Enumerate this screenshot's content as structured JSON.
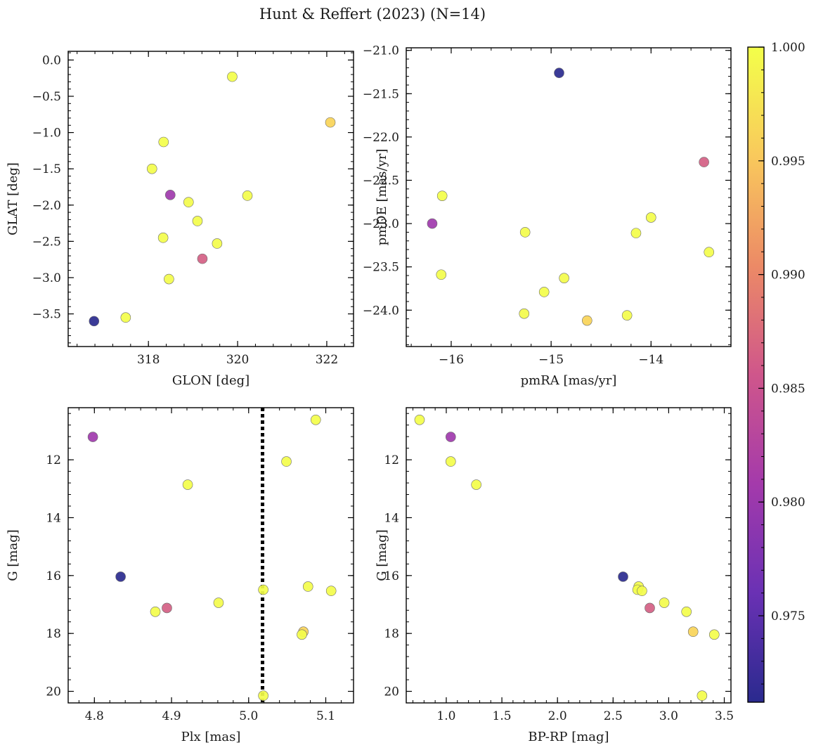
{
  "figure": {
    "title": "Hunt & Reffert (2023) (N=14)"
  },
  "chart_data": [
    {
      "type": "scatter",
      "xlabel": "GLON [deg]",
      "ylabel": "GLAT [deg]",
      "xlim": [
        316.2,
        322.6
      ],
      "ylim": [
        -3.95,
        0.12
      ],
      "invert_y": false,
      "xticks": [
        318,
        320,
        322
      ],
      "xtick_labels": [
        "318",
        "320",
        "322"
      ],
      "yticks": [
        0.0,
        -0.5,
        -1.0,
        -1.5,
        -2.0,
        -2.5,
        -3.0,
        -3.5
      ],
      "ytick_labels": [
        "0.0",
        "−0.5",
        "−1.0",
        "−1.5",
        "−2.0",
        "−2.5",
        "−3.0",
        "−3.5"
      ],
      "x_minor_step": 0.4,
      "y_minor_step": 0.1,
      "points": [
        {
          "x": 316.78,
          "y": -3.6,
          "c": 0.9712
        },
        {
          "x": 317.49,
          "y": -3.55,
          "c": 0.9999
        },
        {
          "x": 318.08,
          "y": -1.5,
          "c": 0.9998
        },
        {
          "x": 318.34,
          "y": -1.13,
          "c": 0.9999
        },
        {
          "x": 318.49,
          "y": -1.86,
          "c": 0.9805
        },
        {
          "x": 318.33,
          "y": -2.45,
          "c": 0.9998
        },
        {
          "x": 318.46,
          "y": -3.02,
          "c": 0.9997
        },
        {
          "x": 318.9,
          "y": -1.96,
          "c": 0.9996
        },
        {
          "x": 319.1,
          "y": -2.22,
          "c": 0.9998
        },
        {
          "x": 319.21,
          "y": -2.74,
          "c": 0.9865
        },
        {
          "x": 319.54,
          "y": -2.53,
          "c": 0.9997
        },
        {
          "x": 319.88,
          "y": -0.23,
          "c": 0.9999
        },
        {
          "x": 320.22,
          "y": -1.87,
          "c": 0.9997
        },
        {
          "x": 322.08,
          "y": -0.86,
          "c": 0.9962
        }
      ]
    },
    {
      "type": "scatter",
      "xlabel": "pmRA [mas/yr]",
      "ylabel": "pmDE [mas/yr]",
      "xlim": [
        -16.45,
        -13.2
      ],
      "ylim": [
        -24.42,
        -20.97
      ],
      "invert_y": false,
      "xticks": [
        -16,
        -15,
        -14
      ],
      "xtick_labels": [
        "−16",
        "−15",
        "−14"
      ],
      "yticks": [
        -21.0,
        -21.5,
        -22.0,
        -22.5,
        -23.0,
        -23.5,
        -24.0
      ],
      "ytick_labels": [
        "−21.0",
        "−21.5",
        "−22.0",
        "−22.5",
        "−23.0",
        "−23.5",
        "−24.0"
      ],
      "x_minor_step": 0.2,
      "y_minor_step": 0.1,
      "points": [
        {
          "x": -14.92,
          "y": -21.26,
          "c": 0.9712
        },
        {
          "x": -13.47,
          "y": -22.29,
          "c": 0.9865
        },
        {
          "x": -16.09,
          "y": -22.68,
          "c": 0.9999
        },
        {
          "x": -16.19,
          "y": -23.0,
          "c": 0.9805
        },
        {
          "x": -14.0,
          "y": -22.93,
          "c": 0.9998
        },
        {
          "x": -15.26,
          "y": -23.1,
          "c": 0.9997
        },
        {
          "x": -14.15,
          "y": -23.11,
          "c": 0.9999
        },
        {
          "x": -13.42,
          "y": -23.33,
          "c": 0.9998
        },
        {
          "x": -16.1,
          "y": -23.59,
          "c": 0.9998
        },
        {
          "x": -14.87,
          "y": -23.63,
          "c": 0.9997
        },
        {
          "x": -15.07,
          "y": -23.79,
          "c": 0.9999
        },
        {
          "x": -15.27,
          "y": -24.04,
          "c": 0.9996
        },
        {
          "x": -14.24,
          "y": -24.06,
          "c": 0.9997
        },
        {
          "x": -14.64,
          "y": -24.12,
          "c": 0.9962
        }
      ]
    },
    {
      "type": "scatter",
      "xlabel": "Plx [mas]",
      "ylabel": "G [mag]",
      "xlim": [
        4.766,
        5.136
      ],
      "ylim": [
        10.2,
        20.4
      ],
      "invert_y": true,
      "xticks": [
        4.8,
        4.9,
        5.0,
        5.1
      ],
      "xtick_labels": [
        "4.8",
        "4.9",
        "5.0",
        "5.1"
      ],
      "yticks": [
        12,
        14,
        16,
        18,
        20
      ],
      "ytick_labels": [
        "12",
        "14",
        "16",
        "18",
        "20"
      ],
      "x_minor_step": 0.02,
      "y_minor_step": 0.4,
      "vline": 5.018,
      "points": [
        {
          "x": 4.798,
          "y": 11.21,
          "c": 0.9805
        },
        {
          "x": 5.087,
          "y": 10.62,
          "c": 0.9999
        },
        {
          "x": 5.049,
          "y": 12.06,
          "c": 0.9998
        },
        {
          "x": 4.921,
          "y": 12.86,
          "c": 0.9999
        },
        {
          "x": 4.834,
          "y": 16.04,
          "c": 0.9712
        },
        {
          "x": 5.077,
          "y": 16.38,
          "c": 0.9997
        },
        {
          "x": 5.019,
          "y": 16.49,
          "c": 0.9999
        },
        {
          "x": 5.107,
          "y": 16.53,
          "c": 0.9997
        },
        {
          "x": 4.961,
          "y": 16.94,
          "c": 0.9996
        },
        {
          "x": 4.894,
          "y": 17.12,
          "c": 0.9865
        },
        {
          "x": 4.879,
          "y": 17.25,
          "c": 0.9998
        },
        {
          "x": 5.071,
          "y": 17.94,
          "c": 0.9962
        },
        {
          "x": 5.069,
          "y": 18.04,
          "c": 0.9998
        },
        {
          "x": 5.019,
          "y": 20.15,
          "c": 0.9997
        }
      ]
    },
    {
      "type": "scatter",
      "xlabel": "BP-RP [mag]",
      "ylabel": "G [mag]",
      "xlim": [
        0.64,
        3.56
      ],
      "ylim": [
        10.2,
        20.4
      ],
      "invert_y": true,
      "xticks": [
        1.0,
        1.5,
        2.0,
        2.5,
        3.0,
        3.5
      ],
      "xtick_labels": [
        "1.0",
        "1.5",
        "2.0",
        "2.5",
        "3.0",
        "3.5"
      ],
      "yticks": [
        12,
        14,
        16,
        18,
        20
      ],
      "ytick_labels": [
        "12",
        "14",
        "16",
        "18",
        "20"
      ],
      "x_minor_step": 0.1,
      "y_minor_step": 0.4,
      "points": [
        {
          "x": 0.76,
          "y": 10.62,
          "c": 0.9999
        },
        {
          "x": 1.04,
          "y": 11.21,
          "c": 0.9805
        },
        {
          "x": 1.04,
          "y": 12.06,
          "c": 0.9998
        },
        {
          "x": 1.27,
          "y": 12.86,
          "c": 0.9999
        },
        {
          "x": 2.59,
          "y": 16.04,
          "c": 0.9712
        },
        {
          "x": 2.73,
          "y": 16.38,
          "c": 0.9997
        },
        {
          "x": 2.72,
          "y": 16.49,
          "c": 0.9999
        },
        {
          "x": 2.76,
          "y": 16.53,
          "c": 0.9997
        },
        {
          "x": 2.96,
          "y": 16.94,
          "c": 0.9996
        },
        {
          "x": 2.83,
          "y": 17.12,
          "c": 0.9865
        },
        {
          "x": 3.16,
          "y": 17.25,
          "c": 0.9998
        },
        {
          "x": 3.22,
          "y": 17.94,
          "c": 0.9962
        },
        {
          "x": 3.41,
          "y": 18.04,
          "c": 0.9998
        },
        {
          "x": 3.3,
          "y": 20.15,
          "c": 0.9997
        }
      ]
    }
  ],
  "colorbar": {
    "colormap": "plasma",
    "range": [
      0.9712,
      1.0
    ],
    "ticks": [
      0.975,
      0.98,
      0.985,
      0.99,
      0.995,
      1.0
    ],
    "tick_labels": [
      "0.975",
      "0.980",
      "0.985",
      "0.990",
      "0.995",
      "1.000"
    ],
    "minor_step": 0.001,
    "colors": [
      "#2a2a8e",
      "#6a31b4",
      "#a43aab",
      "#cf568b",
      "#ec8a66",
      "#f9c95c",
      "#f3ff4a"
    ]
  },
  "style": {
    "marker_edge": "#6b6b6b",
    "vline_color": "#000000",
    "axis_color": "#000000"
  }
}
